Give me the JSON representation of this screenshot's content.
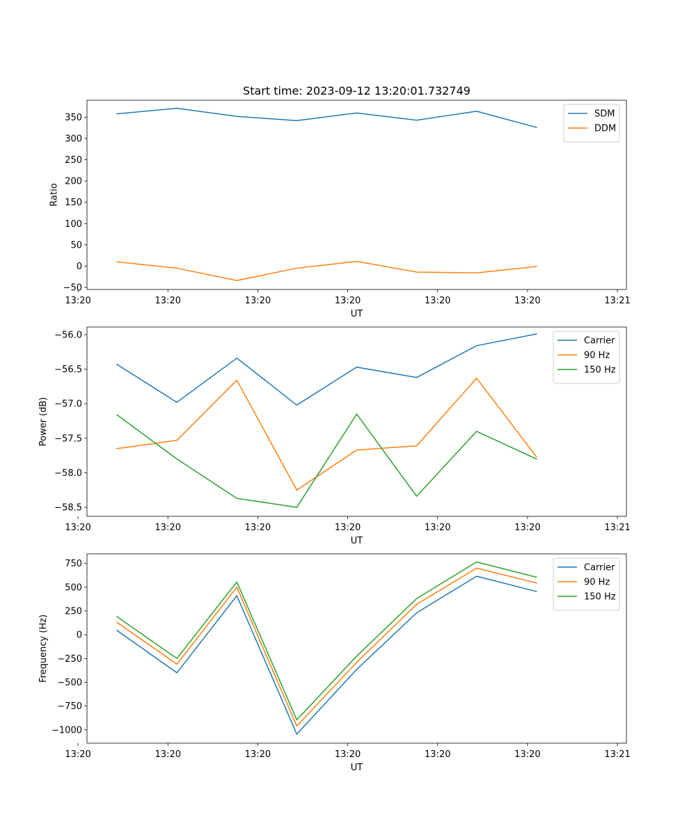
{
  "figure": {
    "title": "Start time: 2023-09-12 13:20:01.732749"
  },
  "colors": {
    "blue": "#1f77b4",
    "orange": "#ff7f0e",
    "green": "#2ca02c"
  },
  "chart_data": [
    {
      "type": "line",
      "title": "Start time: 2023-09-12 13:20:01.732749",
      "xlabel": "UT",
      "ylabel": "Ratio",
      "x": [
        1,
        2,
        3,
        4,
        5,
        6,
        7,
        8
      ],
      "xlim": [
        0.5,
        9.5
      ],
      "x_ticks": [
        0.35,
        1.85,
        3.35,
        4.85,
        6.35,
        7.85,
        9.35
      ],
      "x_tick_labels": [
        "13:20",
        "13:20",
        "13:20",
        "13:20",
        "13:20",
        "13:20",
        "13:21"
      ],
      "ylim": [
        -55,
        390
      ],
      "y_ticks": [
        -50,
        0,
        50,
        100,
        150,
        200,
        250,
        300,
        350
      ],
      "y_tick_labels": [
        "−50",
        "0",
        "50",
        "100",
        "150",
        "200",
        "250",
        "300",
        "350"
      ],
      "legend_position": "top-right",
      "series": [
        {
          "name": "SDM",
          "color": "#1f77b4",
          "values": [
            358,
            371,
            352,
            342,
            360,
            343,
            364,
            326
          ]
        },
        {
          "name": "DDM",
          "color": "#ff7f0e",
          "values": [
            10,
            -5,
            -34,
            -5,
            11,
            -14,
            -16,
            -1
          ]
        }
      ]
    },
    {
      "type": "line",
      "title": "",
      "xlabel": "UT",
      "ylabel": "Power (dB)",
      "x": [
        1,
        2,
        3,
        4,
        5,
        6,
        7,
        8
      ],
      "xlim": [
        0.5,
        9.5
      ],
      "x_ticks": [
        0.35,
        1.85,
        3.35,
        4.85,
        6.35,
        7.85,
        9.35
      ],
      "x_tick_labels": [
        "13:20",
        "13:20",
        "13:20",
        "13:20",
        "13:20",
        "13:20",
        "13:21"
      ],
      "ylim": [
        -58.63,
        -55.89
      ],
      "y_ticks": [
        -58.5,
        -58.0,
        -57.5,
        -57.0,
        -56.5,
        -56.0
      ],
      "y_tick_labels": [
        "−58.5",
        "−58.0",
        "−57.5",
        "−57.0",
        "−56.5",
        "−56.0"
      ],
      "legend_position": "top-right",
      "series": [
        {
          "name": "Carrier",
          "color": "#1f77b4",
          "values": [
            -56.43,
            -56.98,
            -56.34,
            -57.02,
            -56.47,
            -56.62,
            -56.16,
            -55.99
          ]
        },
        {
          "name": "90 Hz",
          "color": "#ff7f0e",
          "values": [
            -57.65,
            -57.53,
            -56.66,
            -58.25,
            -57.67,
            -57.61,
            -56.63,
            -57.77
          ]
        },
        {
          "name": "150 Hz",
          "color": "#2ca02c",
          "values": [
            -57.16,
            -57.8,
            -58.37,
            -58.5,
            -57.15,
            -58.34,
            -57.4,
            -57.8
          ]
        }
      ]
    },
    {
      "type": "line",
      "title": "",
      "xlabel": "UT",
      "ylabel": "Frequency (Hz)",
      "x": [
        1,
        2,
        3,
        4,
        5,
        6,
        7,
        8
      ],
      "xlim": [
        0.5,
        9.5
      ],
      "x_ticks": [
        0.35,
        1.85,
        3.35,
        4.85,
        6.35,
        7.85,
        9.35
      ],
      "x_tick_labels": [
        "13:20",
        "13:20",
        "13:20",
        "13:20",
        "13:20",
        "13:20",
        "13:21"
      ],
      "ylim": [
        -1140,
        850
      ],
      "y_ticks": [
        -1000,
        -750,
        -500,
        -250,
        0,
        250,
        500,
        750
      ],
      "y_tick_labels": [
        "−1000",
        "−750",
        "−500",
        "−250",
        "0",
        "250",
        "500",
        "750"
      ],
      "legend_position": "top-right",
      "series": [
        {
          "name": "Carrier",
          "color": "#1f77b4",
          "values": [
            45,
            -400,
            410,
            -1045,
            -365,
            230,
            615,
            455
          ]
        },
        {
          "name": "90 Hz",
          "color": "#ff7f0e",
          "values": [
            130,
            -310,
            500,
            -960,
            -290,
            320,
            700,
            545
          ]
        },
        {
          "name": "150 Hz",
          "color": "#2ca02c",
          "values": [
            190,
            -250,
            555,
            -895,
            -225,
            380,
            765,
            605
          ]
        }
      ]
    }
  ]
}
